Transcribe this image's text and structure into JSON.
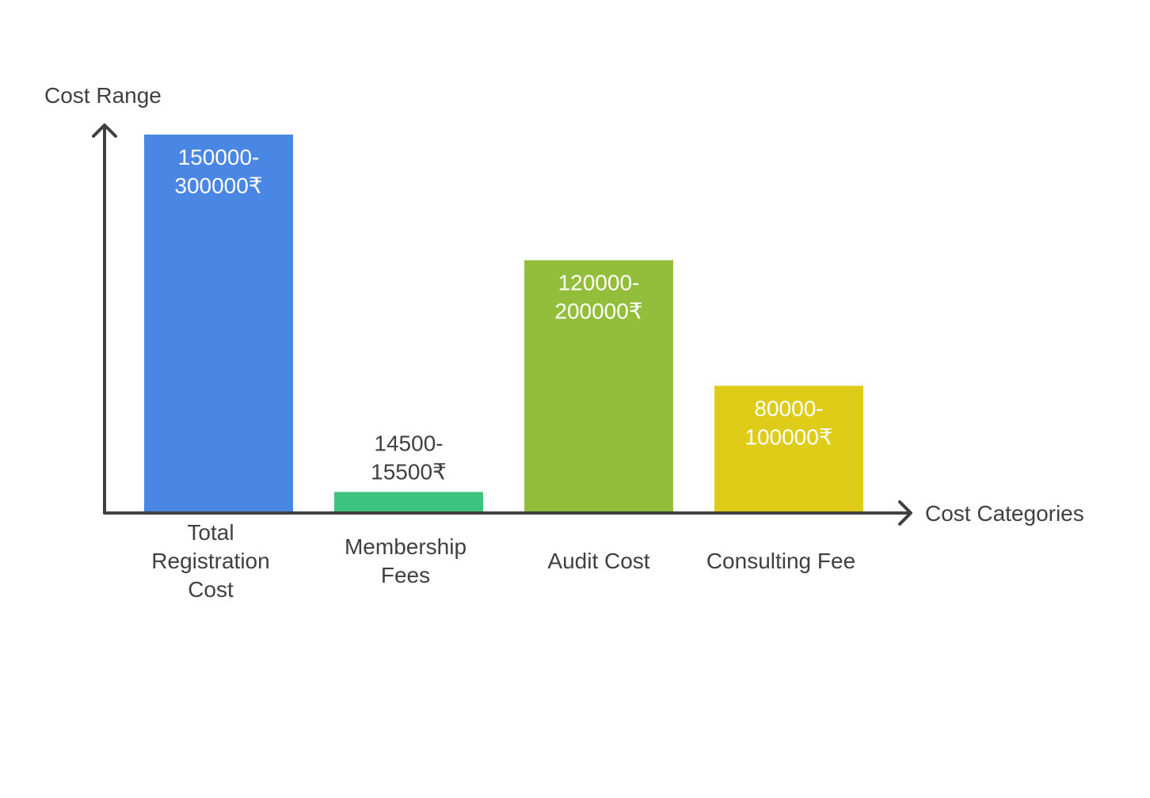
{
  "chart_data": {
    "type": "bar",
    "ylabel": "Cost Range",
    "xlabel": "Cost Categories",
    "grid": false,
    "legend": "none",
    "axis_color": "#404040",
    "categories": [
      "Total Registration Cost",
      "Membership Fees",
      "Audit Cost",
      "Consulting Fee"
    ],
    "category_label_lines": [
      [
        "Total",
        "Registration",
        "Cost"
      ],
      [
        "Membership",
        "Fees"
      ],
      [
        "Audit Cost"
      ],
      [
        "Consulting Fee"
      ]
    ],
    "ranges": [
      [
        150000,
        300000
      ],
      [
        14500,
        15500
      ],
      [
        120000,
        200000
      ],
      [
        80000,
        100000
      ]
    ],
    "values": [
      300000,
      15500,
      200000,
      100000
    ],
    "value_labels": [
      [
        "150000-",
        "300000₹"
      ],
      [
        "14500-",
        "15500₹"
      ],
      [
        "120000-",
        "200000₹"
      ],
      [
        "80000-",
        "100000₹"
      ]
    ],
    "value_label_inside": [
      true,
      false,
      true,
      true
    ],
    "colors": [
      "#4a86e4",
      "#3cc47f",
      "#93be3b",
      "#dfcc18"
    ],
    "ylim": [
      0,
      310000
    ]
  }
}
